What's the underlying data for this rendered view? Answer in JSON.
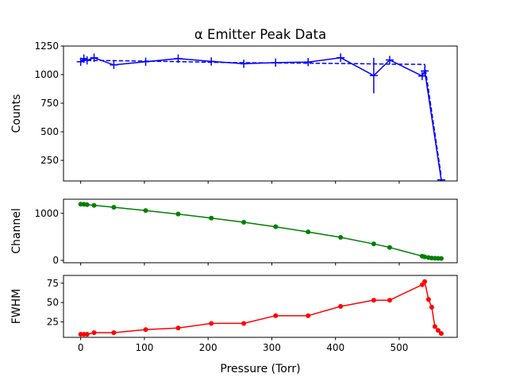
{
  "figure": {
    "title": "α Emitter Peak Data",
    "xlabel": "Pressure (Torr)"
  },
  "chart_data": [
    {
      "type": "line",
      "title": "α Emitter Peak Data",
      "xlabel": "",
      "ylabel": "Counts",
      "xlim": [
        -27,
        591
      ],
      "ylim": [
        70,
        1250
      ],
      "xticks": [
        0,
        100,
        200,
        300,
        400,
        500
      ],
      "show_xtick_labels": false,
      "yticks": [
        250,
        500,
        750,
        1000,
        1250
      ],
      "grid": false,
      "series": [
        {
          "style": "solid-errorbar",
          "color": "#0000ff",
          "x": [
            0,
            5,
            10,
            21,
            52,
            102,
            153,
            205,
            256,
            306,
            357,
            408,
            460,
            485,
            536,
            540,
            566
          ],
          "y": [
            1113,
            1140,
            1125,
            1147,
            1085,
            1113,
            1140,
            1115,
            1095,
            1105,
            1110,
            1148,
            992,
            1128,
            988,
            1032,
            80
          ],
          "yerr": [
            36,
            37,
            36,
            37,
            36,
            36,
            37,
            36,
            36,
            36,
            36,
            37,
            155,
            36,
            36,
            36,
            10
          ]
        },
        {
          "style": "dashed",
          "color": "#0000ff",
          "x": [
            0,
            5,
            10,
            21,
            52,
            102,
            153,
            205,
            256,
            306,
            357,
            408,
            460,
            485,
            536,
            540,
            566
          ],
          "y": [
            1120,
            1122,
            1123,
            1124,
            1122,
            1118,
            1114,
            1108,
            1104,
            1102,
            1100,
            1097,
            1094,
            1092,
            1090,
            1088,
            110
          ]
        }
      ]
    },
    {
      "type": "line",
      "xlabel": "",
      "ylabel": "Channel",
      "xlim": [
        -27,
        591
      ],
      "ylim": [
        -50,
        1300
      ],
      "xticks": [
        0,
        100,
        200,
        300,
        400,
        500
      ],
      "show_xtick_labels": false,
      "yticks": [
        0,
        1000
      ],
      "grid": false,
      "series": [
        {
          "style": "solid-marker",
          "color": "#008000",
          "x": [
            0,
            5,
            10,
            21,
            52,
            102,
            153,
            205,
            256,
            306,
            357,
            408,
            460,
            485,
            536,
            540,
            546,
            551,
            556,
            561,
            566
          ],
          "y": [
            1195,
            1192,
            1185,
            1170,
            1130,
            1060,
            985,
            900,
            810,
            715,
            605,
            490,
            350,
            275,
            90,
            75,
            60,
            50,
            45,
            42,
            40
          ]
        }
      ]
    },
    {
      "type": "line",
      "xlabel": "Pressure (Torr)",
      "ylabel": "FWHM",
      "xlim": [
        -27,
        591
      ],
      "ylim": [
        5,
        85
      ],
      "xticks": [
        0,
        100,
        200,
        300,
        400,
        500
      ],
      "xtick_labels": [
        "0",
        "100",
        "200",
        "300",
        "400",
        "500"
      ],
      "yticks": [
        25,
        50,
        75
      ],
      "grid": false,
      "series": [
        {
          "style": "solid-marker",
          "color": "#ff0000",
          "x": [
            0,
            5,
            10,
            21,
            52,
            102,
            153,
            205,
            256,
            306,
            357,
            408,
            460,
            485,
            536,
            540,
            546,
            551,
            556,
            561,
            566
          ],
          "y": [
            9,
            9,
            9,
            11,
            11,
            15,
            17,
            23,
            23,
            33,
            33,
            45,
            53,
            53,
            73,
            77,
            54,
            44,
            19,
            14,
            10
          ]
        }
      ]
    }
  ]
}
